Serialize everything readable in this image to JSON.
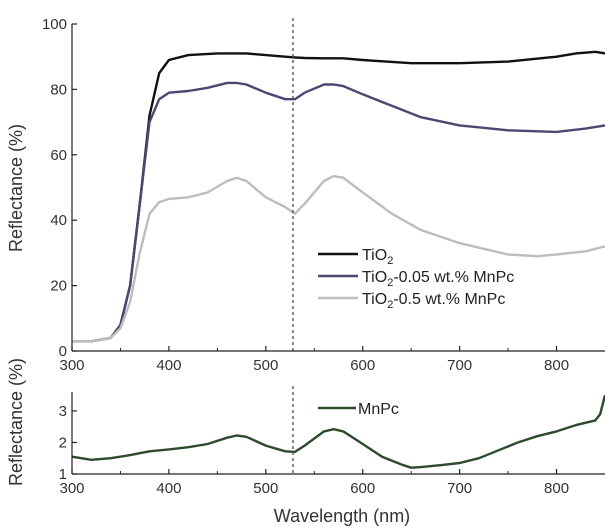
{
  "chart_data": [
    {
      "type": "line",
      "xlabel": "",
      "ylabel": "Reflectance (%)",
      "xlim": [
        300,
        850
      ],
      "ylim": [
        0,
        100
      ],
      "x_ticks": [
        300,
        400,
        500,
        600,
        700,
        800
      ],
      "y_ticks": [
        0,
        20,
        40,
        60,
        80,
        100
      ],
      "grid": false,
      "legend": "bottom-right",
      "reference_line_x": 528,
      "series": [
        {
          "name": "TiO2",
          "name_base": "TiO",
          "name_sub": "2",
          "name_rest": "",
          "color": "#111111",
          "x": [
            300,
            320,
            340,
            350,
            360,
            370,
            380,
            390,
            400,
            420,
            450,
            480,
            500,
            520,
            530,
            540,
            560,
            580,
            600,
            650,
            700,
            750,
            800,
            820,
            840,
            850
          ],
          "y": [
            3,
            3,
            4,
            8,
            20,
            45,
            72,
            85,
            89,
            90.5,
            91,
            91,
            90.5,
            90,
            89.8,
            89.6,
            89.5,
            89.5,
            89,
            88,
            88,
            88.5,
            90,
            91,
            91.5,
            91
          ]
        },
        {
          "name": "TiO2-0.05 wt.% MnPc",
          "name_base": "TiO",
          "name_sub": "2",
          "name_rest": "-0.05 wt.% MnPc",
          "color": "#4a4870",
          "x": [
            300,
            320,
            340,
            350,
            360,
            370,
            380,
            390,
            400,
            420,
            440,
            460,
            470,
            480,
            500,
            520,
            530,
            540,
            560,
            570,
            580,
            600,
            630,
            660,
            700,
            750,
            800,
            830,
            850
          ],
          "y": [
            3,
            3,
            4,
            8,
            20,
            45,
            70,
            77,
            79,
            79.5,
            80.5,
            82,
            82,
            81.5,
            79,
            77,
            77,
            79,
            81.5,
            81.5,
            81,
            78.5,
            75,
            71.5,
            69,
            67.5,
            67,
            68,
            69
          ]
        },
        {
          "name": "TiO2-0.5 wt.% MnPc",
          "name_base": "TiO",
          "name_sub": "2",
          "name_rest": "-0.5 wt.% MnPc",
          "color": "#bdbdbd",
          "x": [
            300,
            320,
            340,
            350,
            360,
            370,
            380,
            390,
            400,
            420,
            440,
            460,
            470,
            480,
            500,
            520,
            530,
            540,
            560,
            570,
            580,
            600,
            630,
            660,
            700,
            750,
            780,
            800,
            830,
            850
          ],
          "y": [
            3,
            3,
            4,
            7,
            15,
            30,
            42,
            45.5,
            46.5,
            47,
            48.5,
            52,
            53,
            52,
            47,
            44,
            42,
            45,
            52,
            53.5,
            53,
            48.5,
            42,
            37,
            33,
            29.5,
            29,
            29.5,
            30.5,
            32
          ]
        }
      ]
    },
    {
      "type": "line",
      "xlabel": "Wavelength (nm)",
      "ylabel": "Reflectance (%)",
      "xlim": [
        300,
        850
      ],
      "ylim": [
        1,
        3.6
      ],
      "x_ticks": [
        300,
        400,
        500,
        600,
        700,
        800
      ],
      "y_ticks": [
        1,
        2,
        3
      ],
      "grid": false,
      "legend": "top-center",
      "reference_line_x": 528,
      "series": [
        {
          "name": "MnPc",
          "color": "#2d4a2d",
          "x": [
            300,
            320,
            340,
            360,
            380,
            400,
            420,
            440,
            460,
            470,
            480,
            500,
            520,
            530,
            540,
            560,
            570,
            580,
            600,
            620,
            640,
            650,
            660,
            680,
            700,
            720,
            740,
            760,
            780,
            800,
            820,
            840,
            845,
            850
          ],
          "y": [
            1.55,
            1.45,
            1.5,
            1.6,
            1.72,
            1.78,
            1.85,
            1.95,
            2.15,
            2.22,
            2.18,
            1.9,
            1.72,
            1.7,
            1.9,
            2.35,
            2.42,
            2.35,
            1.95,
            1.55,
            1.3,
            1.2,
            1.22,
            1.28,
            1.35,
            1.5,
            1.75,
            2.0,
            2.2,
            2.35,
            2.55,
            2.7,
            2.9,
            3.5
          ]
        }
      ]
    }
  ]
}
